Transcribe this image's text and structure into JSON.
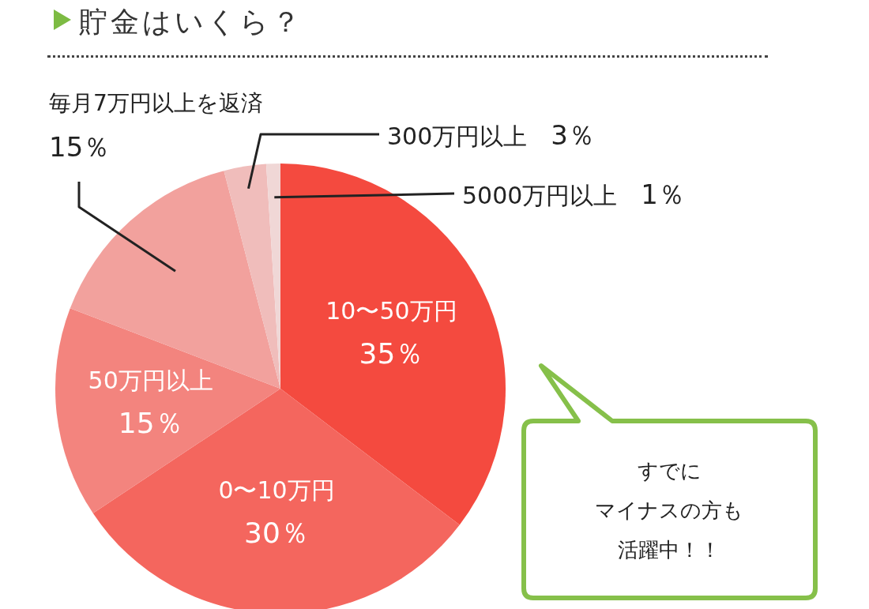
{
  "chart_data": {
    "type": "pie",
    "title": "貯金はいくら？",
    "categories": [
      "10〜50万円",
      "0〜10万円",
      "50万円以上",
      "毎月7万円以上を返済",
      "300万円以上",
      "5000万円以上"
    ],
    "values": [
      35,
      30,
      15,
      15,
      3,
      1
    ],
    "colors": [
      "#f44a3f",
      "#f4665e",
      "#f3847e",
      "#f2a19d",
      "#f0bdbb",
      "#f0d7d6"
    ],
    "value_labels": [
      "35％",
      "30％",
      "15％",
      "15％",
      "3％",
      "1％"
    ],
    "annotations": [
      "すでに",
      "マイナスの方も",
      "活躍中！！"
    ]
  }
}
